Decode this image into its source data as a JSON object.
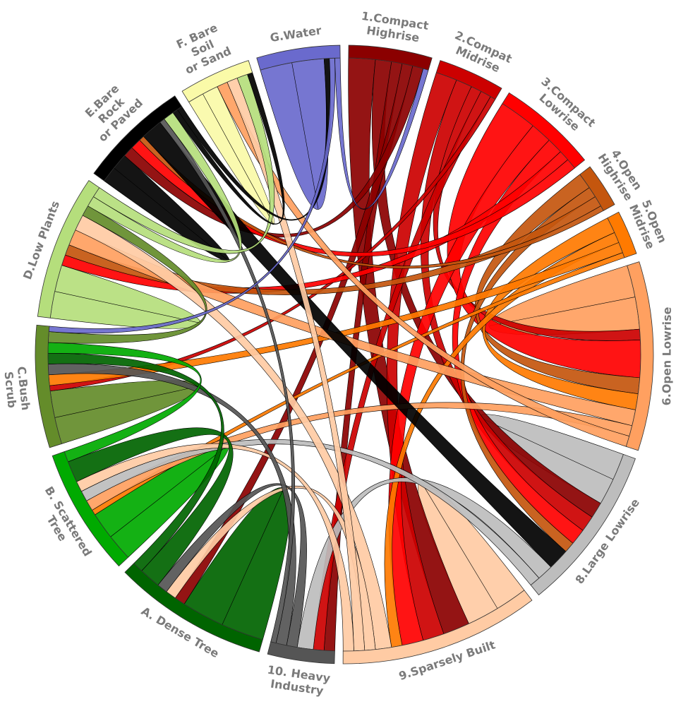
{
  "chart_data": {
    "type": "chord",
    "labels": [
      [
        "1.Compact",
        "Highrise"
      ],
      [
        "2.Compat",
        "Midrise"
      ],
      [
        "3.Compact",
        "Lowrise"
      ],
      [
        "4.Open",
        "Highrise"
      ],
      [
        "5.Open",
        "Midrise"
      ],
      [
        "6.Open Lowrise"
      ],
      [
        "8.Large Lowrise"
      ],
      [
        "9.Sparsely Built"
      ],
      [
        "10. Heavy",
        "Industry"
      ],
      [
        "A. Dense Tree"
      ],
      [
        "B. Scattered",
        "Tree"
      ],
      [
        "C.Bush",
        "Scrub"
      ],
      [
        "D.Low Plants"
      ],
      [
        "E.Bare",
        "Rock",
        "or Paved"
      ],
      [
        "F. Bare",
        "Soil",
        "or Sand"
      ],
      [
        "G.Water"
      ]
    ],
    "colors": [
      "#8b0000",
      "#cc0000",
      "#ff0000",
      "#c4560e",
      "#ff7a00",
      "#ffa060",
      "#bdbdbd",
      "#ffcba4",
      "#555555",
      "#006400",
      "#00aa00",
      "#648c2a",
      "#b5de7c",
      "#000000",
      "#fafaa8",
      "#6a6acd"
    ],
    "links": [
      {
        "source": 15,
        "target": 15,
        "value": 6
      },
      {
        "source": 9,
        "target": 9,
        "value": 8
      },
      {
        "source": 10,
        "target": 10,
        "value": 5
      },
      {
        "source": 11,
        "target": 11,
        "value": 5
      },
      {
        "source": 12,
        "target": 12,
        "value": 5
      },
      {
        "source": 5,
        "target": 5,
        "value": 6
      },
      {
        "source": 6,
        "target": 6,
        "value": 5
      },
      {
        "source": 7,
        "target": 7,
        "value": 6
      },
      {
        "source": 13,
        "target": 13,
        "value": 3
      },
      {
        "source": 14,
        "target": 14,
        "value": 3
      },
      {
        "source": 0,
        "target": 7,
        "value": 5
      },
      {
        "source": 0,
        "target": 6,
        "value": 3
      },
      {
        "source": 0,
        "target": 8,
        "value": 2
      },
      {
        "source": 0,
        "target": 9,
        "value": 2
      },
      {
        "source": 0,
        "target": 13,
        "value": 2
      },
      {
        "source": 1,
        "target": 7,
        "value": 4
      },
      {
        "source": 1,
        "target": 6,
        "value": 3
      },
      {
        "source": 1,
        "target": 5,
        "value": 2
      },
      {
        "source": 1,
        "target": 8,
        "value": 2
      },
      {
        "source": 1,
        "target": 11,
        "value": 1
      },
      {
        "source": 2,
        "target": 5,
        "value": 7
      },
      {
        "source": 2,
        "target": 7,
        "value": 4
      },
      {
        "source": 2,
        "target": 6,
        "value": 3
      },
      {
        "source": 2,
        "target": 12,
        "value": 2
      },
      {
        "source": 2,
        "target": 13,
        "value": 2
      },
      {
        "source": 3,
        "target": 5,
        "value": 3
      },
      {
        "source": 3,
        "target": 6,
        "value": 2
      },
      {
        "source": 3,
        "target": 12,
        "value": 2
      },
      {
        "source": 3,
        "target": 13,
        "value": 1
      },
      {
        "source": 4,
        "target": 5,
        "value": 3
      },
      {
        "source": 4,
        "target": 7,
        "value": 2
      },
      {
        "source": 4,
        "target": 11,
        "value": 2
      },
      {
        "source": 4,
        "target": 10,
        "value": 1
      },
      {
        "source": 5,
        "target": 12,
        "value": 3
      },
      {
        "source": 5,
        "target": 10,
        "value": 2
      },
      {
        "source": 5,
        "target": 14,
        "value": 2
      },
      {
        "source": 13,
        "target": 6,
        "value": 4
      },
      {
        "source": 6,
        "target": 8,
        "value": 3
      },
      {
        "source": 6,
        "target": 10,
        "value": 2
      },
      {
        "source": 7,
        "target": 12,
        "value": 3
      },
      {
        "source": 7,
        "target": 9,
        "value": 2
      },
      {
        "source": 7,
        "target": 14,
        "value": 2
      },
      {
        "source": 7,
        "target": 10,
        "value": 2
      },
      {
        "source": 8,
        "target": 9,
        "value": 2
      },
      {
        "source": 8,
        "target": 11,
        "value": 2
      },
      {
        "source": 8,
        "target": 13,
        "value": 1
      },
      {
        "source": 9,
        "target": 10,
        "value": 4
      },
      {
        "source": 9,
        "target": 11,
        "value": 2
      },
      {
        "source": 10,
        "target": 11,
        "value": 2
      },
      {
        "source": 11,
        "target": 12,
        "value": 2
      },
      {
        "source": 12,
        "target": 13,
        "value": 2
      },
      {
        "source": 12,
        "target": 14,
        "value": 2
      },
      {
        "source": 13,
        "target": 14,
        "value": 1
      },
      {
        "source": 13,
        "target": 15,
        "value": 1
      },
      {
        "source": 15,
        "target": 11,
        "value": 1
      },
      {
        "source": 15,
        "target": 0,
        "value": 1
      }
    ]
  }
}
